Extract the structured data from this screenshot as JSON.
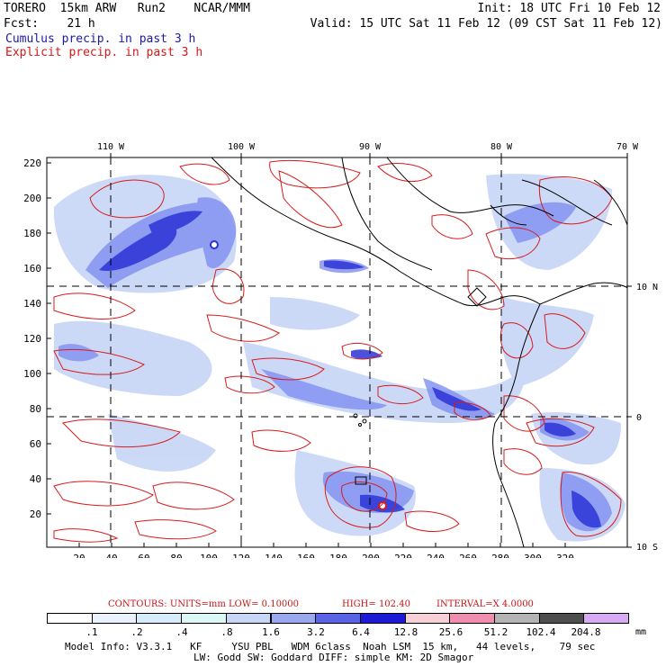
{
  "header": {
    "model": "TORERO  15km ARW   Run2    NCAR/MMM",
    "init": "Init: 18 UTC Fri 10 Feb 12",
    "fcst": "Fcst:    21 h",
    "valid": "Valid: 15 UTC Sat 11 Feb 12 (09 CST Sat 11 Feb 12)",
    "legend_cumulus": "Cumulus precip. in past 3 h",
    "legend_explicit": "Explicit precip. in past 3 h"
  },
  "map": {
    "top_lon_labels": [
      "110 W",
      "100 W",
      "90 W",
      "80 W",
      "70 W"
    ],
    "right_lat_labels": [
      "10 N",
      "0",
      "10 S"
    ],
    "left_y_ticks": [
      "220",
      "200",
      "180",
      "160",
      "140",
      "120",
      "100",
      "80",
      "60",
      "40",
      "20"
    ],
    "bottom_x_ticks": [
      "20",
      "40",
      "60",
      "80",
      "100",
      "120",
      "140",
      "160",
      "180",
      "200",
      "220",
      "240",
      "260",
      "280",
      "300",
      "320"
    ],
    "colors": {
      "cumulus": "#2a3ad8",
      "explicit": "#d81b1b",
      "coast": "#000000"
    }
  },
  "contours": {
    "label": "CONTOURS:  UNITS=mm  LOW= 0.10000",
    "high": "HIGH=  102.40",
    "interval": "INTERVAL=X  4.0000"
  },
  "colorbar": {
    "labels": [
      ".1",
      ".2",
      ".4",
      ".8",
      "1.6",
      "3.2",
      "6.4",
      "12.8",
      "25.6",
      "51.2",
      "102.4",
      "204.8"
    ],
    "unit": "mm",
    "colors": [
      "#ffffff",
      "#eaf2ff",
      "#d6ecfb",
      "#dcf8f6",
      "#c6d6f4",
      "#9aa8ee",
      "#5a63e6",
      "#1c1ad6",
      "#f6d0d6",
      "#f08eb0",
      "#b4b4b4",
      "#4e4e4e",
      "#d8aaf4"
    ]
  },
  "model_info": {
    "line1": "Model Info: V3.3.1   KF     YSU PBL   WDM 6class  Noah LSM  15 km,   44 levels,    79 sec",
    "line2": "LW: Godd SW: Goddard DIFF: simple KM: 2D Smagor"
  }
}
